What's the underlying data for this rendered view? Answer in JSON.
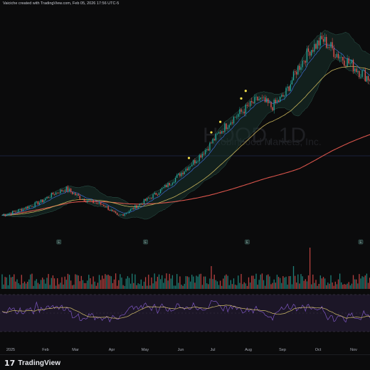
{
  "header": {
    "text": "Vaiciche created with TradingView.com, Feb 05, 2026 17:56 UTC-5"
  },
  "footer": {
    "logo_mark": "17",
    "logo_text": "TradingView"
  },
  "watermark": {
    "symbol": "HOOD, 1D",
    "name": "Robinhood Markets, Inc."
  },
  "colors": {
    "up": "#26a69a",
    "down": "#ef5350",
    "ema_short": "#3d6bd1",
    "ema_mid": "#c7b35a",
    "sma_long": "#d8544b",
    "bb_fill": "#1a3a34",
    "rsi_line": "#7e57c2",
    "rsi_ma": "#d6c26b",
    "marker": "#f5e14b"
  },
  "chart_data": {
    "type": "candlestick",
    "x_labels": [
      "2025",
      "Feb",
      "Mar",
      "Apr",
      "May",
      "Jun",
      "Jul",
      "Aug",
      "Sep",
      "Oct",
      "Nov"
    ],
    "earnings_markers": [
      "E",
      "E",
      "E",
      "E"
    ],
    "close_trajectory": [
      39,
      41,
      44,
      47,
      52,
      55,
      50,
      47,
      45,
      38,
      42,
      47,
      52,
      58,
      65,
      72,
      80,
      90,
      98,
      104,
      110,
      105,
      112,
      128,
      140,
      146,
      138,
      132,
      126,
      120
    ],
    "rsi_range": [
      30,
      70
    ]
  }
}
